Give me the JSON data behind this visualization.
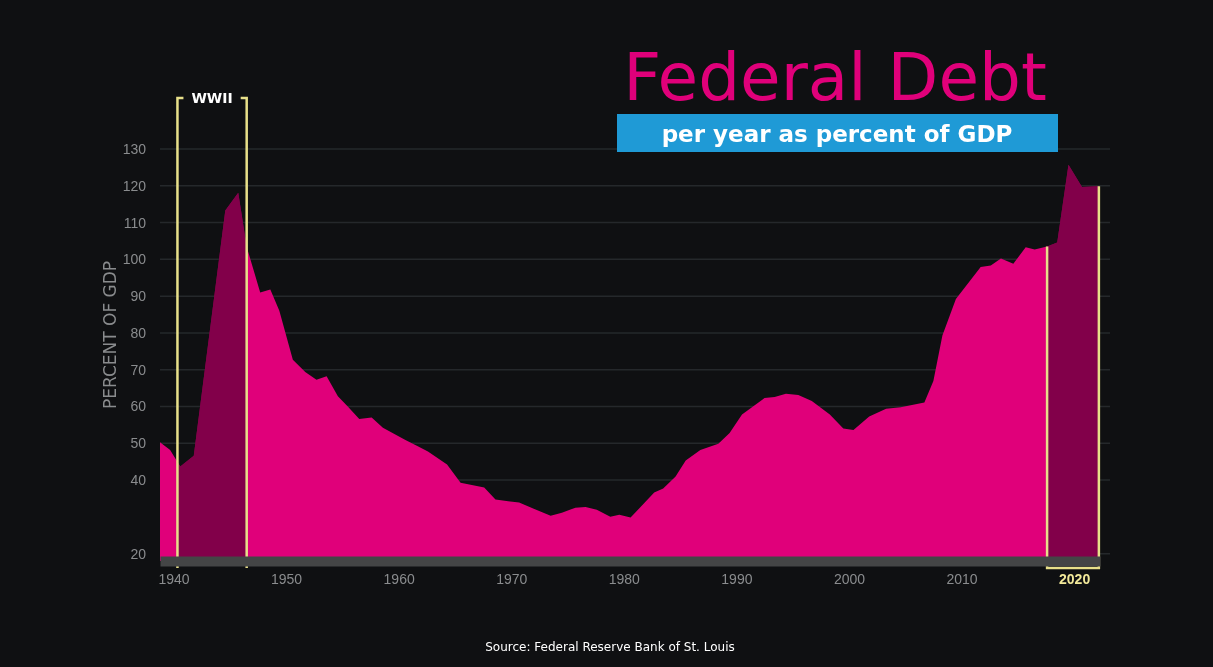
{
  "chart_data": {
    "type": "area",
    "title": "Federal Debt",
    "subtitle": "per year as percent of GDP",
    "ylabel": "PERCENT OF GDP",
    "annotations": [
      "Source: Federal Reserve Bank of St. Louis"
    ],
    "x": [
      1938.8,
      1939.7,
      1940.6,
      1941.8,
      1944.6,
      1945.75,
      1946.5,
      1947.7,
      1948.6,
      1949.4,
      1950.6,
      1951.7,
      1952.7,
      1953.6,
      1954.6,
      1955.5,
      1956.5,
      1957.6,
      1958.6,
      1960.6,
      1961.7,
      1962.6,
      1964.3,
      1965.5,
      1967.6,
      1968.6,
      1970.7,
      1972,
      1973.5,
      1974.5,
      1975.7,
      1976.6,
      1977.6,
      1978.8,
      1979.6,
      1980.6,
      1982.7,
      1983.5,
      1984.6,
      1985.5,
      1986.8,
      1988.4,
      1989.4,
      1990.5,
      1992.5,
      1993.4,
      1994.4,
      1995.5,
      1996.7,
      1998.3,
      1999.5,
      2000.4,
      2001.8,
      2003.3,
      2004.6,
      2006.7,
      2007.5,
      2008.3,
      2009.5,
      2011.7,
      2012.6,
      2013.5,
      2014.6,
      2015.7,
      2016.5,
      2017.6,
      2018.5,
      2019.5,
      2020.7,
      2022.2
    ],
    "series": [
      {
        "color": "#e0007a",
        "values": [
          50.3,
          48.2,
          43.7,
          46.6,
          113.3,
          118.1,
          103.4,
          91,
          91.8,
          86,
          72.7,
          69.4,
          67.3,
          68.2,
          62.8,
          59.9,
          56.6,
          57,
          54.2,
          50.9,
          49.2,
          47.8,
          44.2,
          39.3,
          38,
          34.7,
          33.9,
          32.2,
          30.3,
          31.1,
          32.5,
          32.7,
          31.9,
          30,
          30.6,
          29.8,
          36.6,
          37.7,
          41,
          45.3,
          48.2,
          49.9,
          52.8,
          57.8,
          62.3,
          62.6,
          63.5,
          63.1,
          61.5,
          57.8,
          54,
          53.6,
          57.3,
          59.4,
          59.8,
          61.1,
          66.9,
          79.3,
          89.2,
          97.9,
          98.3,
          100.2,
          98.8,
          103.3,
          102.7,
          103.5,
          104.6,
          125.7,
          119.7,
          119.9
        ]
      }
    ],
    "xlim": [
      1938.8,
      2022.3
    ],
    "ylim": [
      18,
      130
    ],
    "xticks": [
      1940,
      1950,
      1960,
      1970,
      1980,
      1990,
      2000,
      2010,
      2020
    ],
    "yticks": [
      20,
      40,
      50,
      60,
      70,
      80,
      90,
      100,
      110,
      120,
      130
    ],
    "grid": "y",
    "bands": [
      {
        "axis": "x",
        "from": 1940.35,
        "to": 1946.5,
        "label": "WWII",
        "color": "#82004a"
      },
      {
        "axis": "x",
        "from": 2017.6,
        "to": 2022.2,
        "color": "#82004a"
      }
    ]
  }
}
